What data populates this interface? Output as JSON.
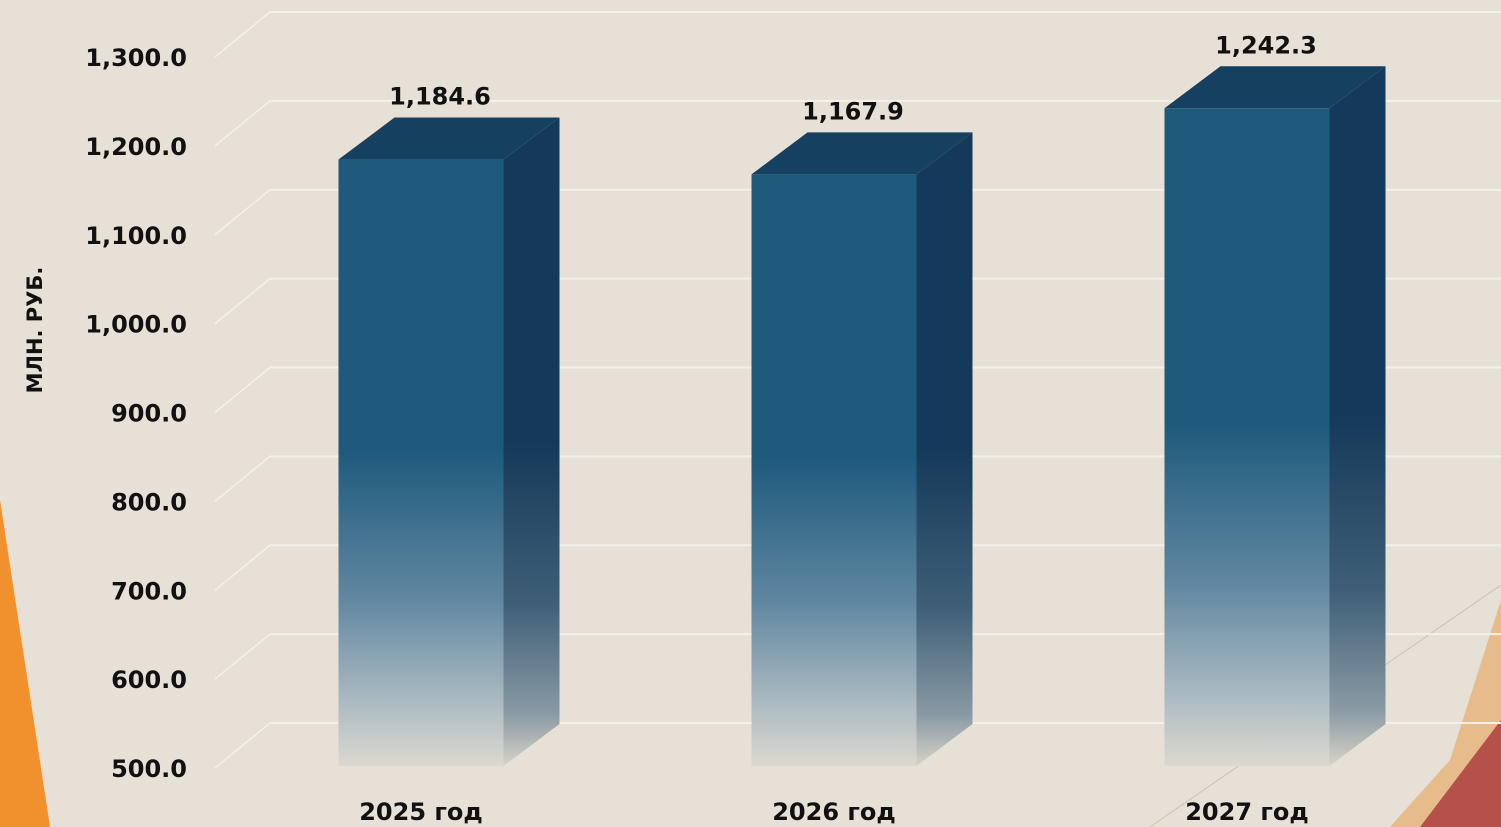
{
  "chart_data": {
    "type": "bar",
    "title": "",
    "xlabel": "",
    "ylabel": "МЛН. РУБ.",
    "categories": [
      "2025 год",
      "2026 год",
      "2027 год"
    ],
    "values": [
      1184.6,
      1167.9,
      1242.3
    ],
    "data_labels": [
      "1,184.6",
      "1,167.9",
      "1,242.3"
    ],
    "ylim": [
      500,
      1300
    ],
    "yticks": [
      500,
      600,
      700,
      800,
      900,
      1000,
      1100,
      1200,
      1300
    ],
    "ytick_labels": [
      "500.0",
      "600.0",
      "700.0",
      "800.0",
      "900.0",
      "1,000.0",
      "1,100.0",
      "1,200.0",
      "1,300.0"
    ],
    "grid": true,
    "style": "3d-column",
    "colors": {
      "bar_front": "#1e5a7c",
      "bar_side": "#15395a",
      "bar_top": "#16405f",
      "background": "#e6e0d6",
      "grid": "#f4f1ec",
      "accent_orange": "#f0912e",
      "accent_red": "#b5504a",
      "accent_peach": "#e7bc8a"
    }
  }
}
